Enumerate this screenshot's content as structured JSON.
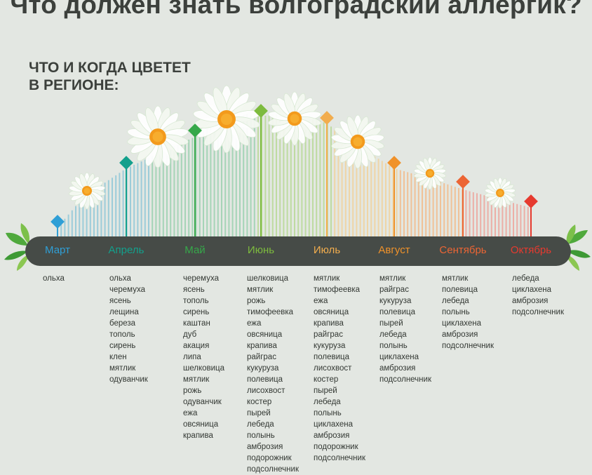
{
  "title": "Что должен знать волгоградский аллергик?",
  "subtitle": [
    "ЧТО И КОГДА ЦВЕТЕТ",
    "В РЕГИОНЕ:"
  ],
  "months": [
    {
      "name": "Март",
      "color": "#2f9fd6",
      "plants": [
        "ольха"
      ]
    },
    {
      "name": "Апрель",
      "color": "#13a08c",
      "plants": [
        "ольха",
        "черемуха",
        "ясень",
        "лещина",
        "береза",
        "тополь",
        "сирень",
        "клен",
        "мятлик",
        "одуванчик"
      ]
    },
    {
      "name": "Май",
      "color": "#36a84a",
      "plants": [
        "черемуха",
        "ясень",
        "тополь",
        "сирень",
        "каштан",
        "дуб",
        "акация",
        "липа",
        "шелковица",
        "мятлик",
        "рожь",
        "одуванчик",
        "ежа",
        "овсяница",
        "крапива"
      ]
    },
    {
      "name": "Июнь",
      "color": "#7dbb3e",
      "plants": [
        "шелковица",
        "мятлик",
        "рожь",
        "тимофеевка",
        "ежа",
        "овсяница",
        "крапива",
        "райграс",
        "кукуруза",
        "полевица",
        "лисохвост",
        "костер",
        "пырей",
        "лебеда",
        "полынь",
        "амброзия",
        "подорожник",
        "подсолнечник"
      ]
    },
    {
      "name": "Июль",
      "color": "#f2ad4e",
      "plants": [
        "мятлик",
        "тимофеевка",
        "ежа",
        "овсяница",
        "крапива",
        "райграс",
        "кукуруза",
        "полевица",
        "лисохвост",
        "костер",
        "пырей",
        "лебеда",
        "полынь",
        "циклахена",
        "амброзия",
        "подорожник",
        "подсолнечник"
      ]
    },
    {
      "name": "Август",
      "color": "#f0922a",
      "plants": [
        "мятлик",
        "райграс",
        "кукуруза",
        "полевица",
        "пырей",
        "лебеда",
        "полынь",
        "циклахена",
        "амброзия",
        "подсолнечник"
      ]
    },
    {
      "name": "Сентябрь",
      "color": "#ec6534",
      "plants": [
        "мятлик",
        "полевица",
        "лебеда",
        "полынь",
        "циклахена",
        "амброзия",
        "подсолнечник"
      ]
    },
    {
      "name": "Октябрь",
      "color": "#e63a2f",
      "plants": [
        "лебеда",
        "циклахена",
        "амброзия",
        "подсолнечник"
      ]
    }
  ]
}
